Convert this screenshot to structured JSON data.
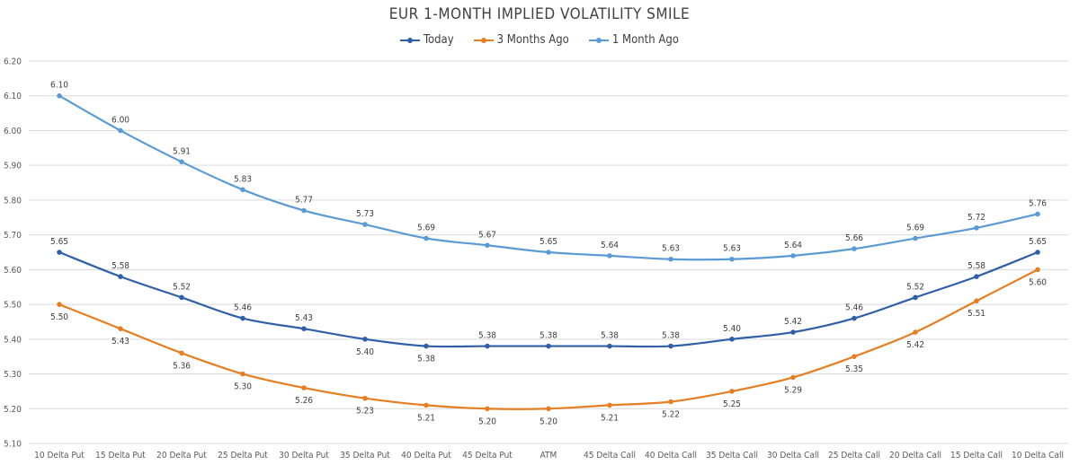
{
  "chart_data": {
    "type": "line",
    "title": "EUR 1-MONTH IMPLIED VOLATILITY SMILE",
    "xlabel": "",
    "ylabel": "",
    "ylim": [
      5.1,
      6.2
    ],
    "yticks": [
      "5.10",
      "5.20",
      "5.30",
      "5.40",
      "5.50",
      "5.60",
      "5.70",
      "5.80",
      "5.90",
      "6.00",
      "6.10",
      "6.20"
    ],
    "grid": "horizontal",
    "legend_position": "top",
    "categories": [
      "10 Delta Put",
      "15 Delta Put",
      "20 Delta Put",
      "25 Delta Put",
      "30 Delta Put",
      "35 Delta Put",
      "40 Delta Put",
      "45 Delta Put",
      "ATM",
      "45 Delta Call",
      "40 Delta Call",
      "35 Delta Call",
      "30 Delta Call",
      "25 Delta Call",
      "20 Delta Call",
      "15 Delta Call",
      "10 Delta Call"
    ],
    "series": [
      {
        "name": "Today",
        "color": "#2e5fa8",
        "label_position": "above",
        "values": [
          5.65,
          5.58,
          5.52,
          5.46,
          5.43,
          5.4,
          5.38,
          5.38,
          5.38,
          5.38,
          5.38,
          5.4,
          5.42,
          5.46,
          5.52,
          5.58,
          5.65
        ],
        "labels": [
          "5.65",
          "5.58",
          "5.52",
          "5.46",
          "5.43",
          "5.40",
          "5.38",
          "5.38",
          "5.38",
          "5.38",
          "5.38",
          "5.40",
          "5.42",
          "5.46",
          "5.52",
          "5.58",
          "5.65"
        ],
        "label_side": [
          "above",
          "above",
          "above",
          "above",
          "above",
          "below",
          "below",
          "above",
          "above",
          "above",
          "above",
          "above",
          "above",
          "above",
          "above",
          "above",
          "above"
        ]
      },
      {
        "name": "3 Months Ago",
        "color": "#e67e22",
        "label_position": "below",
        "values": [
          5.5,
          5.43,
          5.36,
          5.3,
          5.26,
          5.23,
          5.21,
          5.2,
          5.2,
          5.21,
          5.22,
          5.25,
          5.29,
          5.35,
          5.42,
          5.51,
          5.6
        ],
        "labels": [
          "5.50",
          "5.43",
          "5.36",
          "5.30",
          "5.26",
          "5.23",
          "5.21",
          "5.20",
          "5.20",
          "5.21",
          "5.22",
          "5.25",
          "5.29",
          "5.35",
          "5.42",
          "5.51",
          "5.60"
        ],
        "label_side": [
          "below",
          "below",
          "below",
          "below",
          "below",
          "below",
          "below",
          "below",
          "below",
          "below",
          "below",
          "below",
          "below",
          "below",
          "below",
          "below",
          "below"
        ]
      },
      {
        "name": "1 Month Ago",
        "color": "#5b9bd5",
        "label_position": "above",
        "values": [
          6.1,
          6.0,
          5.91,
          5.83,
          5.77,
          5.73,
          5.69,
          5.67,
          5.65,
          5.64,
          5.63,
          5.63,
          5.64,
          5.66,
          5.69,
          5.72,
          5.76
        ],
        "labels": [
          "6.10",
          "6.00",
          "5.91",
          "5.83",
          "5.77",
          "5.73",
          "5.69",
          "5.67",
          "5.65",
          "5.64",
          "5.63",
          "5.63",
          "5.64",
          "5.66",
          "5.69",
          "5.72",
          "5.76"
        ],
        "label_side": [
          "above",
          "above",
          "above",
          "above",
          "above",
          "above",
          "above",
          "above",
          "above",
          "above",
          "above",
          "above",
          "above",
          "above",
          "above",
          "above",
          "above"
        ]
      }
    ]
  },
  "colors": {
    "grid": "#d9d9d9",
    "text": "#404040"
  }
}
